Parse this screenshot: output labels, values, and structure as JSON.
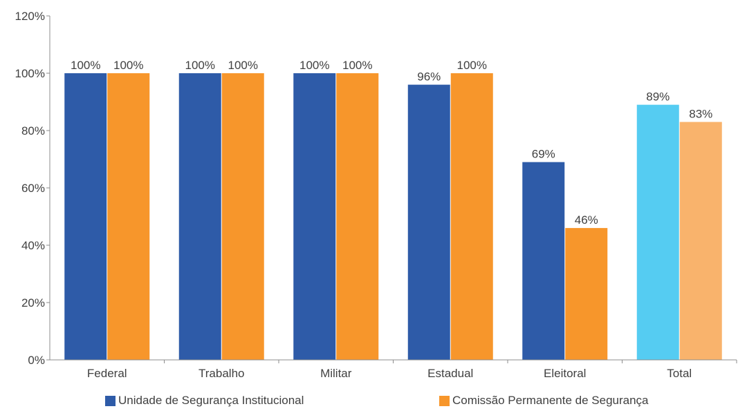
{
  "chart_data": {
    "type": "bar",
    "categories": [
      "Federal",
      "Trabalho",
      "Militar",
      "Estadual",
      "Eleitoral",
      "Total"
    ],
    "series": [
      {
        "name": "Unidade de Segurança Institucional",
        "values": [
          100,
          100,
          100,
          96,
          69,
          89
        ],
        "labels": [
          "100%",
          "100%",
          "100%",
          "96%",
          "69%",
          "89%"
        ],
        "color": "#2E5BA8",
        "highlight_color": "#55CCF2"
      },
      {
        "name": "Comissão Permanente de Segurança",
        "values": [
          100,
          100,
          100,
          100,
          46,
          83
        ],
        "labels": [
          "100%",
          "100%",
          "100%",
          "100%",
          "46%",
          "83%"
        ],
        "color": "#F7962B",
        "highlight_color": "#F9B36C"
      }
    ],
    "highlight_category": "Total",
    "ylim": [
      0,
      120
    ],
    "yticks": [
      0,
      20,
      40,
      60,
      80,
      100,
      120
    ],
    "ytick_labels": [
      "0%",
      "20%",
      "40%",
      "60%",
      "80%",
      "100%",
      "120%"
    ],
    "grid": false,
    "legend_position": "bottom",
    "title": "",
    "xlabel": "",
    "ylabel": ""
  }
}
